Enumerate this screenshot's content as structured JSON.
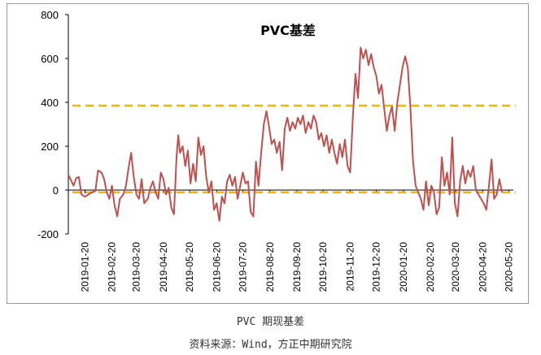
{
  "caption": {
    "title": "PVC 期现基差",
    "source": "资料来源：Wind，方正中期研究院"
  },
  "colors": {
    "series": "#C0504D",
    "reference": "#F5B800",
    "axis": "#000000",
    "frame": "#9a9a9a"
  },
  "chart_data": {
    "type": "line",
    "title": "PVC基差",
    "xlabel": "",
    "ylabel": "",
    "ylim": [
      -200,
      800
    ],
    "yticks": [
      -200,
      0,
      200,
      400,
      600,
      800
    ],
    "grid": false,
    "legend": "none",
    "x_tick_labels": [
      "2019-01-20",
      "2019-02-20",
      "2019-03-20",
      "2019-04-20",
      "2019-05-20",
      "2019-06-20",
      "2019-07-20",
      "2019-08-20",
      "2019-09-20",
      "2019-10-20",
      "2019-11-20",
      "2019-12-20",
      "2020-01-20",
      "2020-02-20",
      "2020-03-20",
      "2020-04-20",
      "2020-05-20"
    ],
    "x_range": [
      "2019-01-01",
      "2020-05-25"
    ],
    "reference_lines": [
      {
        "y": 385,
        "style": "dashed"
      },
      {
        "y": -10,
        "style": "dashed"
      }
    ],
    "series": [
      {
        "points": [
          [
            "2019-01-01",
            70
          ],
          [
            "2019-01-04",
            45
          ],
          [
            "2019-01-07",
            20
          ],
          [
            "2019-01-10",
            55
          ],
          [
            "2019-01-13",
            60
          ],
          [
            "2019-01-16",
            -20
          ],
          [
            "2019-01-20",
            -30
          ],
          [
            "2019-01-24",
            -20
          ],
          [
            "2019-01-28",
            -10
          ],
          [
            "2019-02-01",
            -5
          ],
          [
            "2019-02-04",
            90
          ],
          [
            "2019-02-08",
            80
          ],
          [
            "2019-02-11",
            50
          ],
          [
            "2019-02-14",
            -10
          ],
          [
            "2019-02-17",
            -40
          ],
          [
            "2019-02-20",
            20
          ],
          [
            "2019-02-23",
            -70
          ],
          [
            "2019-02-26",
            -120
          ],
          [
            "2019-03-01",
            -40
          ],
          [
            "2019-03-05",
            -20
          ],
          [
            "2019-03-08",
            20
          ],
          [
            "2019-03-11",
            100
          ],
          [
            "2019-03-14",
            170
          ],
          [
            "2019-03-17",
            60
          ],
          [
            "2019-03-20",
            -20
          ],
          [
            "2019-03-23",
            -40
          ],
          [
            "2019-03-26",
            50
          ],
          [
            "2019-03-29",
            -60
          ],
          [
            "2019-04-02",
            -40
          ],
          [
            "2019-04-05",
            10
          ],
          [
            "2019-04-08",
            40
          ],
          [
            "2019-04-11",
            -10
          ],
          [
            "2019-04-14",
            -40
          ],
          [
            "2019-04-17",
            80
          ],
          [
            "2019-04-20",
            50
          ],
          [
            "2019-04-23",
            -20
          ],
          [
            "2019-04-26",
            10
          ],
          [
            "2019-04-29",
            -80
          ],
          [
            "2019-05-02",
            -110
          ],
          [
            "2019-05-05",
            150
          ],
          [
            "2019-05-07",
            250
          ],
          [
            "2019-05-09",
            170
          ],
          [
            "2019-05-12",
            200
          ],
          [
            "2019-05-15",
            110
          ],
          [
            "2019-05-18",
            180
          ],
          [
            "2019-05-21",
            30
          ],
          [
            "2019-05-24",
            120
          ],
          [
            "2019-05-27",
            40
          ],
          [
            "2019-05-30",
            240
          ],
          [
            "2019-06-02",
            160
          ],
          [
            "2019-06-05",
            200
          ],
          [
            "2019-06-08",
            60
          ],
          [
            "2019-06-11",
            -10
          ],
          [
            "2019-06-14",
            40
          ],
          [
            "2019-06-17",
            -90
          ],
          [
            "2019-06-20",
            -60
          ],
          [
            "2019-06-23",
            -140
          ],
          [
            "2019-06-26",
            -30
          ],
          [
            "2019-06-29",
            -60
          ],
          [
            "2019-07-02",
            40
          ],
          [
            "2019-07-05",
            70
          ],
          [
            "2019-07-08",
            20
          ],
          [
            "2019-07-11",
            60
          ],
          [
            "2019-07-14",
            -40
          ],
          [
            "2019-07-17",
            20
          ],
          [
            "2019-07-20",
            80
          ],
          [
            "2019-07-23",
            30
          ],
          [
            "2019-07-26",
            40
          ],
          [
            "2019-07-29",
            -100
          ],
          [
            "2019-08-01",
            -120
          ],
          [
            "2019-08-04",
            130
          ],
          [
            "2019-08-07",
            20
          ],
          [
            "2019-08-10",
            170
          ],
          [
            "2019-08-13",
            300
          ],
          [
            "2019-08-16",
            360
          ],
          [
            "2019-08-19",
            290
          ],
          [
            "2019-08-22",
            210
          ],
          [
            "2019-08-25",
            230
          ],
          [
            "2019-08-28",
            170
          ],
          [
            "2019-08-31",
            220
          ],
          [
            "2019-09-03",
            90
          ],
          [
            "2019-09-06",
            280
          ],
          [
            "2019-09-09",
            330
          ],
          [
            "2019-09-12",
            270
          ],
          [
            "2019-09-15",
            310
          ],
          [
            "2019-09-18",
            280
          ],
          [
            "2019-09-21",
            330
          ],
          [
            "2019-09-24",
            300
          ],
          [
            "2019-09-27",
            340
          ],
          [
            "2019-09-30",
            260
          ],
          [
            "2019-10-03",
            310
          ],
          [
            "2019-10-06",
            280
          ],
          [
            "2019-10-09",
            340
          ],
          [
            "2019-10-12",
            310
          ],
          [
            "2019-10-15",
            230
          ],
          [
            "2019-10-18",
            260
          ],
          [
            "2019-10-21",
            200
          ],
          [
            "2019-10-24",
            250
          ],
          [
            "2019-10-27",
            170
          ],
          [
            "2019-10-30",
            230
          ],
          [
            "2019-11-02",
            170
          ],
          [
            "2019-11-05",
            120
          ],
          [
            "2019-11-08",
            210
          ],
          [
            "2019-11-11",
            150
          ],
          [
            "2019-11-14",
            230
          ],
          [
            "2019-11-17",
            110
          ],
          [
            "2019-11-20",
            80
          ],
          [
            "2019-11-23",
            330
          ],
          [
            "2019-11-26",
            530
          ],
          [
            "2019-11-29",
            420
          ],
          [
            "2019-12-02",
            650
          ],
          [
            "2019-12-05",
            600
          ],
          [
            "2019-12-08",
            640
          ],
          [
            "2019-12-11",
            570
          ],
          [
            "2019-12-14",
            620
          ],
          [
            "2019-12-17",
            560
          ],
          [
            "2019-12-20",
            520
          ],
          [
            "2019-12-23",
            440
          ],
          [
            "2019-12-26",
            480
          ],
          [
            "2019-12-29",
            370
          ],
          [
            "2020-01-01",
            270
          ],
          [
            "2020-01-04",
            340
          ],
          [
            "2020-01-07",
            380
          ],
          [
            "2020-01-10",
            270
          ],
          [
            "2020-01-13",
            400
          ],
          [
            "2020-01-16",
            480
          ],
          [
            "2020-01-19",
            560
          ],
          [
            "2020-01-22",
            610
          ],
          [
            "2020-01-25",
            560
          ],
          [
            "2020-01-28",
            380
          ],
          [
            "2020-01-31",
            130
          ],
          [
            "2020-02-03",
            20
          ],
          [
            "2020-02-06",
            -10
          ],
          [
            "2020-02-09",
            -40
          ],
          [
            "2020-02-12",
            -90
          ],
          [
            "2020-02-15",
            40
          ],
          [
            "2020-02-18",
            -70
          ],
          [
            "2020-02-21",
            20
          ],
          [
            "2020-02-24",
            -10
          ],
          [
            "2020-02-27",
            -110
          ],
          [
            "2020-03-01",
            -80
          ],
          [
            "2020-03-04",
            150
          ],
          [
            "2020-03-07",
            20
          ],
          [
            "2020-03-10",
            80
          ],
          [
            "2020-03-13",
            -20
          ],
          [
            "2020-03-16",
            240
          ],
          [
            "2020-03-19",
            -60
          ],
          [
            "2020-03-22",
            -120
          ],
          [
            "2020-03-25",
            40
          ],
          [
            "2020-03-28",
            110
          ],
          [
            "2020-03-31",
            30
          ],
          [
            "2020-04-03",
            90
          ],
          [
            "2020-04-06",
            60
          ],
          [
            "2020-04-09",
            110
          ],
          [
            "2020-04-12",
            0
          ],
          [
            "2020-04-15",
            -20
          ],
          [
            "2020-04-18",
            -40
          ],
          [
            "2020-04-21",
            -60
          ],
          [
            "2020-04-24",
            -90
          ],
          [
            "2020-04-27",
            20
          ],
          [
            "2020-04-30",
            140
          ],
          [
            "2020-05-03",
            -40
          ],
          [
            "2020-05-06",
            -20
          ],
          [
            "2020-05-09",
            50
          ],
          [
            "2020-05-12",
            -10
          ]
        ]
      }
    ]
  }
}
